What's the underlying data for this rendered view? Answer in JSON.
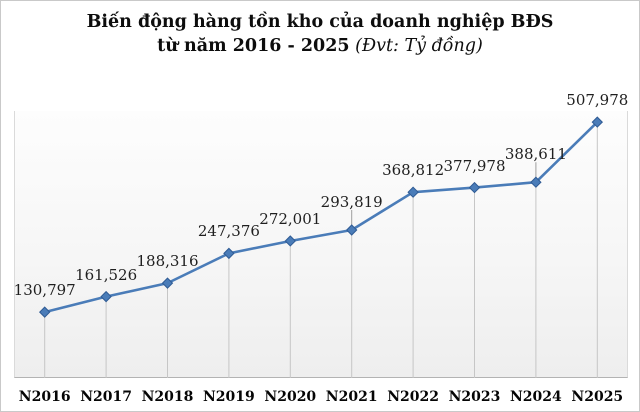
{
  "title": {
    "line1": "Biến động hàng tồn kho của doanh nghiệp BĐS",
    "line2_bold": "từ năm 2016 - 2025",
    "line2_italic": " (Đvt: Tỷ đồng)"
  },
  "chart_data": {
    "type": "line",
    "title": "Biến động hàng tồn kho của doanh nghiệp BĐS từ năm 2016 - 2025",
    "unit_note": "Đvt: Tỷ đồng",
    "categories": [
      "N2016",
      "N2017",
      "N2018",
      "N2019",
      "N2020",
      "N2021",
      "N2022",
      "N2023",
      "N2024",
      "N2025"
    ],
    "values": [
      130797,
      161526,
      188316,
      247376,
      272001,
      293819,
      368812,
      377978,
      388611,
      507978
    ],
    "point_labels": [
      "130,797",
      "161,526",
      "188,316",
      "247,376",
      "272,001",
      "293,819",
      "368,812",
      "377,978",
      "388,611",
      "507,978"
    ],
    "xlabel": "",
    "ylabel": "",
    "ylim": [
      0,
      530000
    ],
    "legend": "none",
    "gridlines": "vertical-droplines",
    "marker_shape": "diamond",
    "colors": {
      "line": "#4a7cb8",
      "marker_fill": "#4a7cb8",
      "marker_edge": "#2f5b94",
      "dropline": "#c6c6c6",
      "axis": "#b3b3b3",
      "leader": "#9e9e9e",
      "label_text": "#1f1f1f",
      "plot_fill_top": "#fdfdfd",
      "plot_fill_bottom": "#eeeeee"
    }
  }
}
